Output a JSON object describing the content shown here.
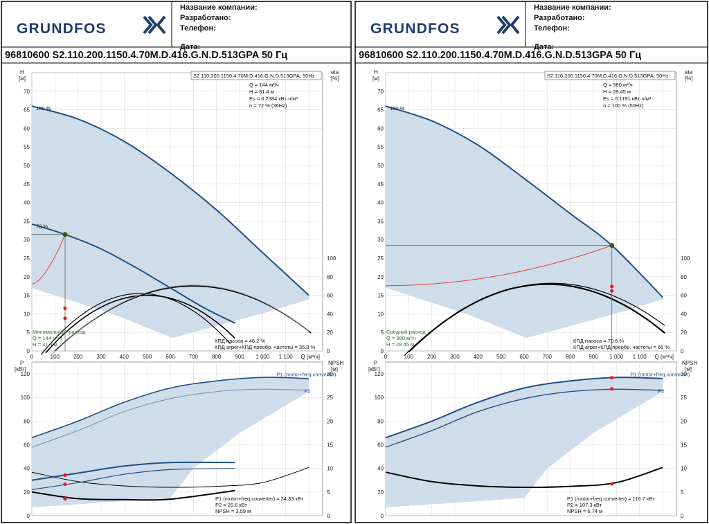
{
  "colors": {
    "curve": "#1f4f84",
    "envelope": "#cfdce9",
    "op_point": "#2f5a1f",
    "marker": "#e02020",
    "efficiency": "#e04040"
  },
  "header": {
    "logo": "GRUNDFOS",
    "fields": [
      "Название компании:",
      "Разработано:",
      "Телефон:",
      "Дата:"
    ]
  },
  "panels": [
    {
      "model_title": "96810600 S2.110.200.1150.4.70M.D.416.G.N.D.513GPA 50 Гц",
      "legend_box": "S2.110.200.1150.4.70M.D.416.G.N.D.513GPA, 50Hz",
      "info": [
        "Q = 144 м³/ч",
        "H = 31.4 м",
        "Es = 0.2384 кВт·ч/м³",
        "n = 72 % (36Hz)"
      ],
      "speed_labels": [
        "100 %",
        "72 %"
      ],
      "duty_label": [
        "Минимальный расход",
        "Q = 144 м³/ч",
        "H = 31.4 м"
      ],
      "eff_text": [
        "КПД насоса = 46.2 %",
        "КПД агрег+КПД преобр. частоты = 35.8 %"
      ],
      "power_text": [
        "P1 (motor+freq.converter) = 34.33 кВт",
        "P2 = 26.6 кВт",
        "NPSH = 3.59 м"
      ]
    },
    {
      "model_title": "96810600 S2.110.200.1150.4.70M.D.416.G.N.D.513GPA 50 Гц",
      "legend_box": "S2.110.200.1150.4.70M.D.416.G.N.D.513GPA, 50Hz",
      "info": [
        "Q = 980 м³/ч",
        "H = 28.45 м",
        "Es = 0.1191 кВт·ч/м³",
        "n = 100 % (50Hz)"
      ],
      "speed_labels": [
        "100 %"
      ],
      "duty_label": [
        "Средний расход",
        "Q = 980 м³/ч",
        "H = 28.45 м"
      ],
      "eff_text": [
        "КПД насоса = 70.6 %",
        "КПД агрег+КПД преобр. частоты = 65 %"
      ],
      "power_text": [
        "P1 (motor+freq.converter) = 116.7 кВт",
        "P2 = 107.3 кВт",
        "NPSH = 6.74 м"
      ]
    }
  ],
  "axes": {
    "h_label": [
      "H",
      "[м]"
    ],
    "eta_label": [
      "eta",
      "[%]"
    ],
    "p_label": [
      "P",
      "[кВт]"
    ],
    "npsh_label": [
      "NPSH",
      "[м]"
    ],
    "q_label": "Q [м³/ч]",
    "h_ticks": [
      "0",
      "5",
      "10",
      "15",
      "20",
      "25",
      "30",
      "35",
      "40",
      "45",
      "50",
      "55",
      "60",
      "65",
      "70"
    ],
    "eta_ticks": [
      "0",
      "20",
      "40",
      "60",
      "80",
      "100"
    ],
    "q_ticks": [
      "0",
      "100",
      "200",
      "300",
      "400",
      "500",
      "600",
      "700",
      "800",
      "900",
      "1 000",
      "1 100"
    ],
    "p_ticks": [
      "0",
      "20",
      "40",
      "60",
      "80",
      "100",
      "120"
    ],
    "npsh_ticks": [
      "0",
      "5",
      "10",
      "15",
      "20",
      "25",
      "30"
    ],
    "p1_label": "P1 (motor+freq.converter)",
    "p2_label": "P2"
  },
  "chart_data": [
    {
      "type": "line",
      "title": "96810600 S2.110.200.1150.4.70M.D.416.G.N.D.513GPA 50 Гц",
      "xlabel": "Q [м³/ч]",
      "ylabel": "H [м]",
      "xlim": [
        0,
        1250
      ],
      "ylim": [
        0,
        75
      ],
      "series": [
        {
          "name": "100 %",
          "x": [
            0,
            200,
            400,
            600,
            800,
            1000,
            1200
          ],
          "values": [
            66,
            62.5,
            56.5,
            48,
            38,
            26.5,
            15
          ]
        },
        {
          "name": "72 %",
          "x": [
            0,
            144,
            300,
            450,
            600,
            750,
            880
          ],
          "values": [
            34.2,
            31.4,
            27.5,
            22.5,
            17,
            11.5,
            7.5
          ]
        }
      ],
      "duty_point": {
        "x": 144,
        "y": 31.4
      },
      "efficiency_pct": 46.2,
      "power_kw": {
        "P1": 34.33,
        "P2": 26.6
      },
      "npsh_m": 3.59
    },
    {
      "type": "line",
      "title": "96810600 S2.110.200.1150.4.70M.D.416.G.N.D.513GPA 50 Гц",
      "xlabel": "Q [м³/ч]",
      "ylabel": "H [м]",
      "xlim": [
        0,
        1250
      ],
      "ylim": [
        0,
        75
      ],
      "series": [
        {
          "name": "100 %",
          "x": [
            0,
            200,
            400,
            600,
            800,
            980,
            1200
          ],
          "values": [
            66,
            62,
            55.5,
            46.5,
            37,
            28.45,
            14.5
          ]
        }
      ],
      "duty_point": {
        "x": 980,
        "y": 28.45
      },
      "efficiency_pct": 70.6,
      "power_kw": {
        "P1": 116.7,
        "P2": 107.3
      },
      "npsh_m": 6.74
    }
  ]
}
